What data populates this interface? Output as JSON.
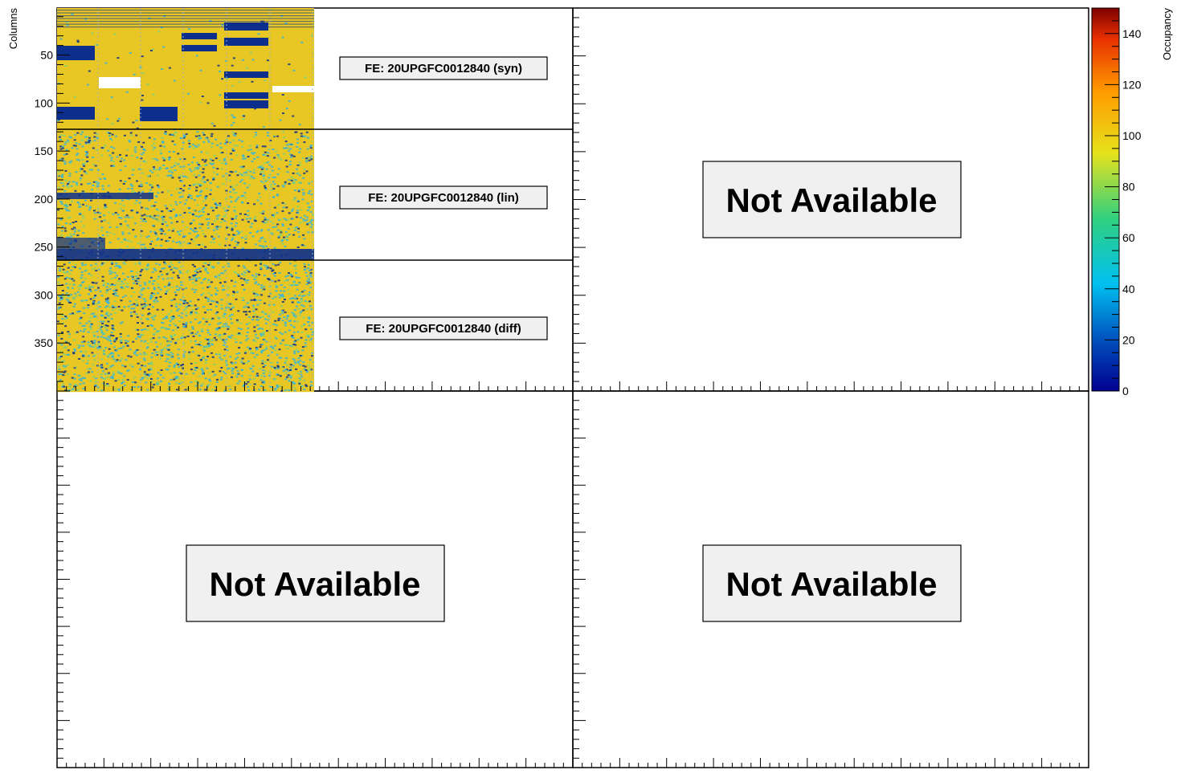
{
  "chart_data": {
    "type": "heatmap",
    "title": "",
    "ylabel": "Columns",
    "colorbar_label": "Occupancy",
    "y_ticks": [
      "50",
      "100",
      "150",
      "200",
      "250",
      "300",
      "350"
    ],
    "colorbar_ticks": [
      "0",
      "20",
      "40",
      "60",
      "80",
      "100",
      "120",
      "140"
    ],
    "colorbar_range": [
      0,
      150
    ],
    "y_range": [
      1,
      400
    ],
    "legend": "right",
    "regions": [
      {
        "name": "syn",
        "label": "FE: 20UPGFC0012840 (syn)",
        "rows": [
          1,
          128
        ],
        "typical_occupancy": 100
      },
      {
        "name": "lin",
        "label": "FE: 20UPGFC0012840 (lin)",
        "rows": [
          129,
          264
        ],
        "typical_occupancy": 90
      },
      {
        "name": "diff",
        "label": "FE: 20UPGFC0012840 (diff)",
        "rows": [
          265,
          400
        ],
        "typical_occupancy": 85
      }
    ],
    "panels": [
      {
        "id": "top-left",
        "status": "map"
      },
      {
        "id": "top-right",
        "status": "Not Available"
      },
      {
        "id": "bottom-left",
        "status": "Not Available"
      },
      {
        "id": "bottom-right",
        "status": "Not Available"
      }
    ]
  },
  "colors": {
    "high": "#e8c724",
    "mid": "#36b4d8",
    "low": "#0d2f8c",
    "panel_box": "#f0f0f0"
  }
}
